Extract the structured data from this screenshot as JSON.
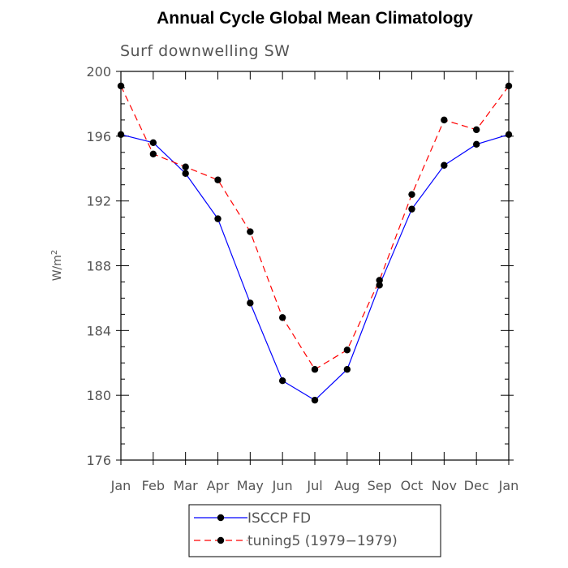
{
  "chart_data": {
    "type": "line",
    "title": "Annual Cycle Global Mean Climatology",
    "subtitle": "Surf downwelling SW",
    "ylabel": "W/m",
    "ylabel_sup": "2",
    "xlabel": "",
    "categories": [
      "Jan",
      "Feb",
      "Mar",
      "Apr",
      "May",
      "Jun",
      "Jul",
      "Aug",
      "Sep",
      "Oct",
      "Nov",
      "Dec",
      "Jan"
    ],
    "ylim": [
      176,
      200
    ],
    "yticks": [
      176,
      180,
      184,
      188,
      192,
      196,
      200
    ],
    "grid": false,
    "legend_placement": "bottom",
    "series": [
      {
        "name": "ISCCP FD",
        "color": "#0000ff",
        "dash": "solid",
        "values": [
          196.1,
          195.6,
          193.7,
          190.9,
          185.7,
          180.9,
          179.7,
          181.6,
          186.8,
          191.5,
          194.2,
          195.5,
          196.1
        ]
      },
      {
        "name": "tuning5 (1979−1979)",
        "color": "#ff0000",
        "dash": "dashed",
        "values": [
          199.1,
          194.9,
          194.1,
          193.3,
          190.1,
          184.8,
          181.6,
          182.8,
          187.1,
          192.4,
          197.0,
          196.4,
          199.1
        ]
      }
    ]
  }
}
